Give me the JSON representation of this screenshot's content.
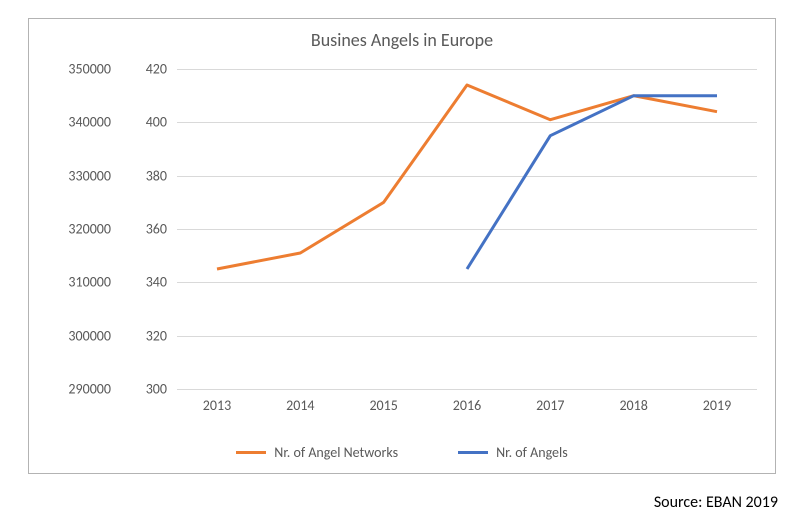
{
  "chart": {
    "type": "line",
    "title": "Busines Angels in Europe",
    "title_fontsize": 18,
    "background_color": "#ffffff",
    "border_color": "#b3b3b3",
    "grid_color": "#d9d9d9",
    "label_color": "#595959",
    "label_fontsize": 14,
    "x": {
      "categories": [
        "2013",
        "2014",
        "2015",
        "2016",
        "2017",
        "2018",
        "2019"
      ]
    },
    "y_left": {
      "min": 290000,
      "max": 350000,
      "step": 10000,
      "ticks": [
        "290000",
        "300000",
        "310000",
        "320000",
        "330000",
        "340000",
        "350000"
      ]
    },
    "y_right": {
      "min": 300,
      "max": 420,
      "step": 20,
      "ticks": [
        "300",
        "320",
        "340",
        "360",
        "380",
        "400",
        "420"
      ]
    },
    "series": [
      {
        "name": "Nr. of Angel Networks",
        "axis": "right",
        "color": "#ed7d31",
        "line_width": 3,
        "values": [
          345,
          351,
          370,
          414,
          401,
          410,
          404
        ]
      },
      {
        "name": "Nr. of Angels",
        "axis": "right",
        "color": "#4472c4",
        "line_width": 3,
        "values": [
          null,
          null,
          null,
          345,
          395,
          410,
          410
        ]
      }
    ],
    "legend_position": "bottom"
  },
  "source_text": "Source: EBAN 2019"
}
